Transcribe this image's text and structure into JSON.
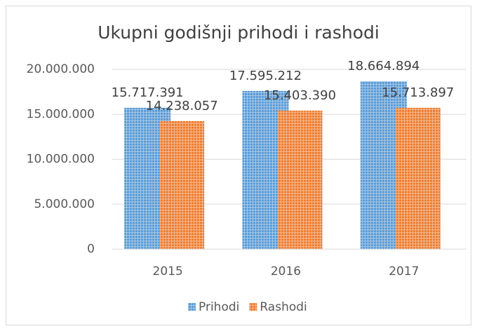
{
  "chart_data": {
    "type": "bar",
    "title": "Ukupni godišnji prihodi i rashodi",
    "categories": [
      "2015",
      "2016",
      "2017"
    ],
    "series": [
      {
        "name": "Prihodi",
        "color": "#5b9bd5",
        "values": [
          15717391,
          17595212,
          18664894
        ],
        "value_labels": [
          "15.717.391",
          "17.595.212",
          "18.664.894"
        ]
      },
      {
        "name": "Rashodi",
        "color": "#ed7d31",
        "values": [
          14238057,
          15403390,
          15713897
        ],
        "value_labels": [
          "14.238.057",
          "15.403.390",
          "15.713.897"
        ]
      }
    ],
    "ylim": [
      0,
      20000000
    ],
    "yticks": [
      0,
      {
        "value": 5000000,
        "label": "5.000.000"
      },
      {
        "value": 10000000,
        "label": "10.000.000"
      },
      {
        "value": 15000000,
        "label": "15.000.000"
      },
      {
        "value": 20000000,
        "label": "20.000.000"
      }
    ],
    "grid": true,
    "legend": "bottom"
  }
}
